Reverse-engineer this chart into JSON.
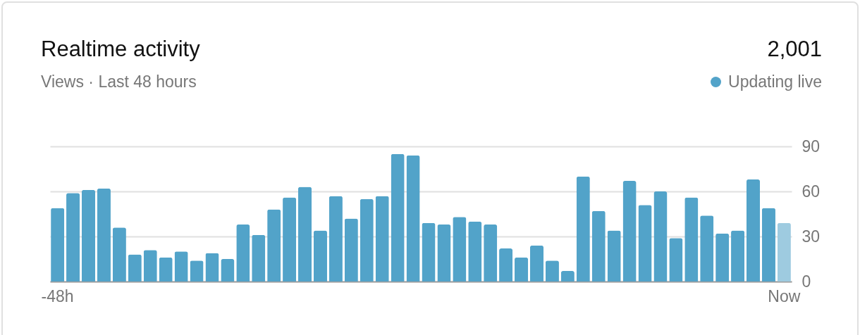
{
  "chart_data": {
    "type": "bar",
    "title": "Realtime activity",
    "subtitle": "Views · Last 48 hours",
    "annotations": [
      "2,001",
      "Updating live"
    ],
    "categories": [
      "-48h",
      null,
      null,
      null,
      null,
      null,
      null,
      null,
      null,
      null,
      null,
      null,
      null,
      null,
      null,
      null,
      null,
      null,
      null,
      null,
      null,
      null,
      null,
      null,
      null,
      null,
      null,
      null,
      null,
      null,
      null,
      null,
      null,
      null,
      null,
      null,
      null,
      null,
      null,
      null,
      null,
      null,
      null,
      null,
      null,
      null,
      null,
      "Now"
    ],
    "values": [
      49,
      59,
      61,
      62,
      36,
      18,
      21,
      16,
      20,
      14,
      19,
      15,
      38,
      31,
      48,
      56,
      63,
      34,
      57,
      42,
      55,
      57,
      85,
      84,
      39,
      38,
      43,
      40,
      38,
      22,
      16,
      24,
      14,
      7,
      70,
      47,
      34,
      67,
      51,
      60,
      29,
      56,
      44,
      32,
      34,
      68,
      49,
      39
    ],
    "colors": [
      "#52a3c9",
      "#52a3c9",
      "#52a3c9",
      "#52a3c9",
      "#52a3c9",
      "#52a3c9",
      "#52a3c9",
      "#52a3c9",
      "#52a3c9",
      "#52a3c9",
      "#52a3c9",
      "#52a3c9",
      "#52a3c9",
      "#52a3c9",
      "#52a3c9",
      "#52a3c9",
      "#52a3c9",
      "#52a3c9",
      "#52a3c9",
      "#52a3c9",
      "#52a3c9",
      "#52a3c9",
      "#52a3c9",
      "#52a3c9",
      "#52a3c9",
      "#52a3c9",
      "#52a3c9",
      "#52a3c9",
      "#52a3c9",
      "#52a3c9",
      "#52a3c9",
      "#52a3c9",
      "#52a3c9",
      "#52a3c9",
      "#52a3c9",
      "#52a3c9",
      "#52a3c9",
      "#52a3c9",
      "#52a3c9",
      "#52a3c9",
      "#52a3c9",
      "#52a3c9",
      "#52a3c9",
      "#52a3c9",
      "#52a3c9",
      "#52a3c9",
      "#52a3c9",
      "#9ecbe0"
    ],
    "ylim": [
      0,
      90
    ],
    "yticks": [
      0,
      30,
      60,
      90
    ],
    "grid": "y"
  }
}
